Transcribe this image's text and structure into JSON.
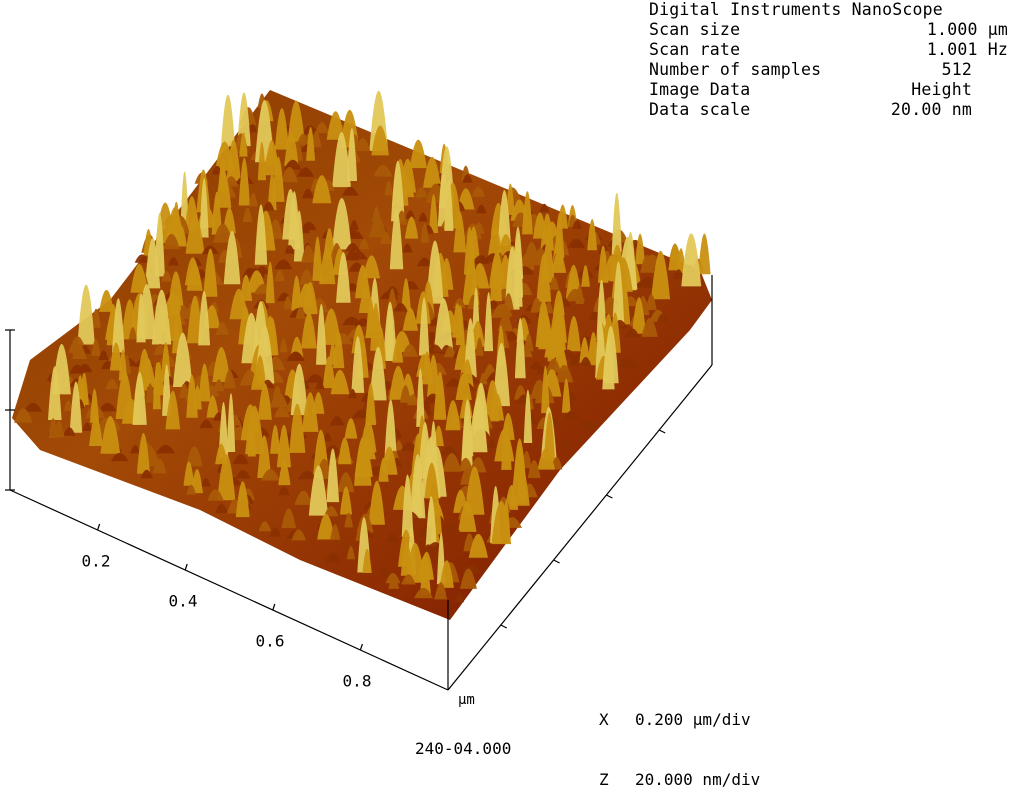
{
  "info": {
    "title": "Digital Instruments NanoScope",
    "rows": [
      {
        "label": "Scan size",
        "value": "1.000 µm"
      },
      {
        "label": "Scan rate",
        "value": "1.001 Hz"
      },
      {
        "label": "Number of samples",
        "value": "512"
      },
      {
        "label": "Image Data",
        "value": "Height"
      },
      {
        "label": "Data scale",
        "value": "20.00 nm"
      }
    ]
  },
  "axis": {
    "tick_labels": [
      "0.2",
      "0.4",
      "0.6",
      "0.8"
    ],
    "unit": "µm"
  },
  "legend": [
    {
      "axis": "X",
      "value": "0.200 µm/div"
    },
    {
      "axis": "Z",
      "value": "20.000 nm/div"
    }
  ],
  "footer": "240-04.000",
  "colors": {
    "surface_dark": "#7a1a00",
    "surface_mid": "#b05a08",
    "surface_light": "#d8a010",
    "surface_peak": "#e8d860",
    "axes": "#000000"
  }
}
